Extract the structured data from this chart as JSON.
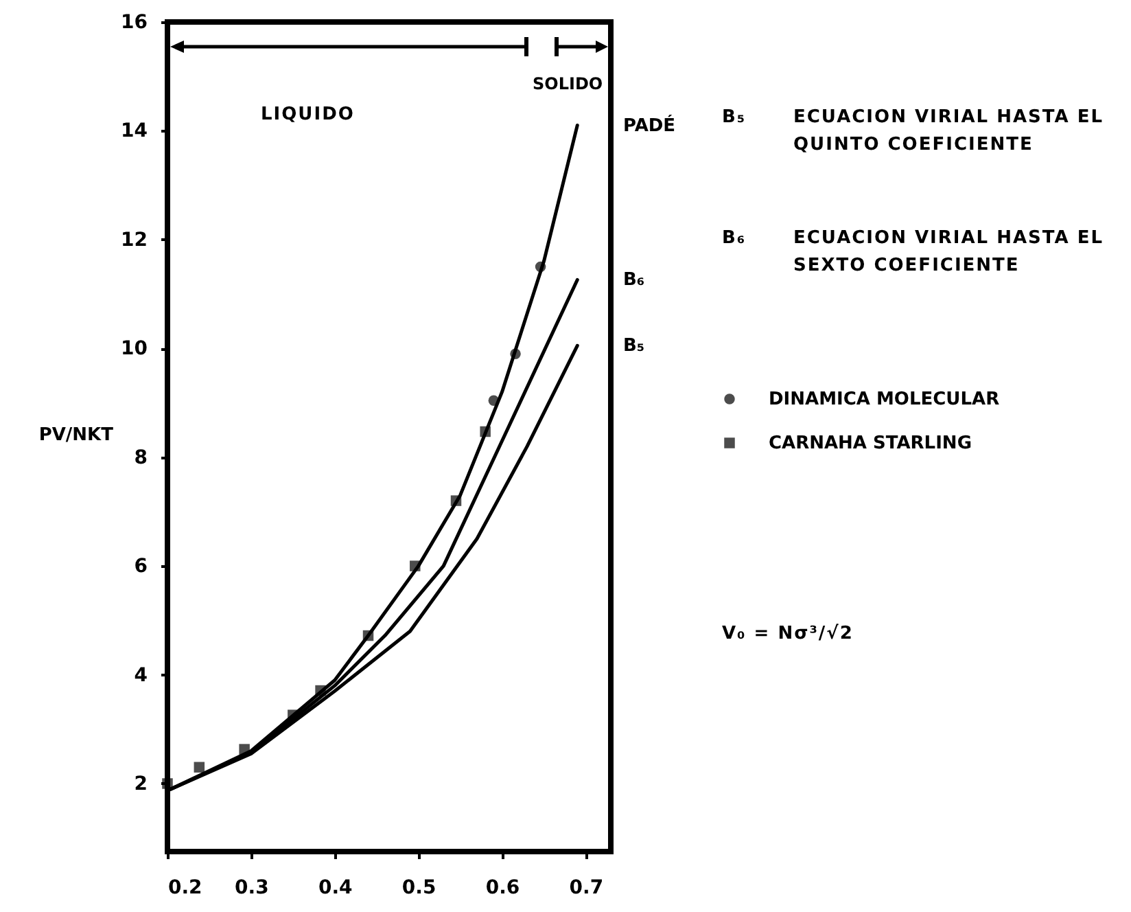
{
  "chart_data": {
    "type": "line",
    "ylabel": "PV/NKT",
    "xlim": [
      0.2,
      0.73
    ],
    "xticks": [
      0.2,
      0.3,
      0.4,
      0.5,
      0.6,
      0.7
    ],
    "ylim": [
      0.75,
      16
    ],
    "yticks": [
      2,
      4,
      6,
      8,
      10,
      12,
      14,
      16
    ],
    "grid": false,
    "legend": "right",
    "line_style": "solid",
    "series": [
      {
        "name": "PADÉ",
        "color": "#000000",
        "x": [
          0.2,
          0.3,
          0.4,
          0.44,
          0.5,
          0.55,
          0.6,
          0.65,
          0.69
        ],
        "values": [
          1.87,
          2.6,
          3.9,
          4.72,
          6.0,
          7.3,
          9.2,
          11.6,
          14.1
        ]
      },
      {
        "name": "B₆",
        "color": "#000000",
        "x": [
          0.2,
          0.3,
          0.4,
          0.46,
          0.53,
          0.6,
          0.69
        ],
        "values": [
          1.87,
          2.57,
          3.8,
          4.72,
          6.0,
          8.3,
          11.26
        ]
      },
      {
        "name": "B₅",
        "color": "#000000",
        "x": [
          0.2,
          0.3,
          0.4,
          0.49,
          0.57,
          0.63,
          0.69
        ],
        "values": [
          1.87,
          2.55,
          3.7,
          4.8,
          6.5,
          8.2,
          10.05
        ]
      },
      {
        "name": "DINAMICA MOLECULAR",
        "type": "scatter",
        "marker": "circle",
        "color": "#000000",
        "x": [
          0.59,
          0.616,
          0.646
        ],
        "values": [
          9.04,
          9.9,
          11.5
        ]
      },
      {
        "name": "CARNAHA STARLING",
        "type": "scatter",
        "marker": "square",
        "color": "#000000",
        "x": [
          0.2,
          0.238,
          0.292,
          0.35,
          0.383,
          0.44,
          0.496,
          0.545,
          0.58
        ],
        "values": [
          2.0,
          2.3,
          2.63,
          3.26,
          3.71,
          4.72,
          6.0,
          7.2,
          8.47
        ]
      }
    ],
    "annotations": [
      "LIQUIDO",
      "SOLIDO",
      "B₅ ECUACION VIRIAL HASTA EL QUINTO COEFICIENTE",
      "B₆ ECUACION VIRIAL HASTA EL SEXTO COEFICIENTE",
      "V₀ = Nσ³/√2"
    ]
  }
}
